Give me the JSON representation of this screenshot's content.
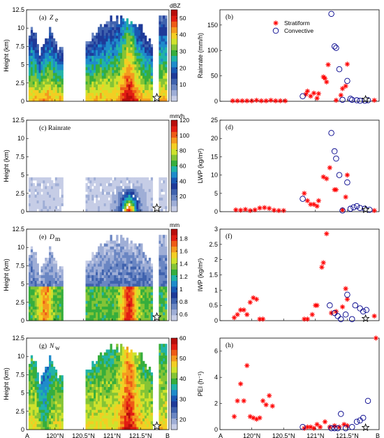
{
  "colors": {
    "stratiform": "#ff0000",
    "convective": "#00008b",
    "colormap": [
      "#c6cde6",
      "#9faed6",
      "#6a86c3",
      "#3f62ae",
      "#1f3a99",
      "#1a58b4",
      "#1f8ccb",
      "#21b3a8",
      "#36ae3d",
      "#84c436",
      "#cfe22d",
      "#f3ce23",
      "#f49a1f",
      "#ee5b17",
      "#e21d13",
      "#b80d0b"
    ]
  },
  "bottom_axis": {
    "start_label": "A",
    "end_label": "B",
    "tick_labels": [
      "120°N",
      "120.5°N",
      "121°N",
      "121.5°N"
    ],
    "tick_fracs": [
      0.2,
      0.4,
      0.6,
      0.8
    ]
  },
  "chart_data": [
    {
      "id": "a",
      "type": "heatmap",
      "panel_label": "(a)",
      "var_main": "Z",
      "var_sub": "e",
      "ylabel": "Height (km)",
      "ylim": [
        0,
        12.5
      ],
      "yticks": [
        0,
        2.5,
        5,
        7.5,
        10,
        12.5
      ],
      "colorbar": {
        "unit": "dBZ",
        "range": [
          0,
          55
        ],
        "ticks": [
          10,
          20,
          30,
          40,
          50
        ]
      },
      "field": "ze"
    },
    {
      "id": "b",
      "type": "scatter",
      "panel_label": "(b)",
      "ylabel": "Rainrate (mm/h)",
      "ylim": [
        0,
        180
      ],
      "yticks": [
        0,
        50,
        100,
        150
      ],
      "legend": {
        "placement": "top-left",
        "entries": [
          "Stratiform",
          "Convective"
        ]
      },
      "series": [
        {
          "name": "Stratiform",
          "marker": "star",
          "points": [
            [
              0.08,
              1
            ],
            [
              0.11,
              1
            ],
            [
              0.14,
              1
            ],
            [
              0.17,
              1
            ],
            [
              0.2,
              1
            ],
            [
              0.23,
              2
            ],
            [
              0.26,
              1
            ],
            [
              0.29,
              1
            ],
            [
              0.32,
              2
            ],
            [
              0.35,
              1
            ],
            [
              0.38,
              1
            ],
            [
              0.41,
              1
            ],
            [
              0.54,
              14
            ],
            [
              0.55,
              20
            ],
            [
              0.57,
              10
            ],
            [
              0.59,
              16
            ],
            [
              0.61,
              6
            ],
            [
              0.62,
              15
            ],
            [
              0.65,
              48
            ],
            [
              0.66,
              45
            ],
            [
              0.67,
              38
            ],
            [
              0.68,
              72
            ],
            [
              0.73,
              2
            ],
            [
              0.76,
              12
            ],
            [
              0.77,
              25
            ],
            [
              0.79,
              30
            ],
            [
              0.8,
              73
            ],
            [
              0.97,
              2
            ]
          ]
        },
        {
          "name": "Convective",
          "points": [
            [
              0.52,
              10
            ],
            [
              0.7,
              172
            ],
            [
              0.72,
              108
            ],
            [
              0.73,
              105
            ],
            [
              0.75,
              63
            ],
            [
              0.77,
              3
            ],
            [
              0.8,
              40
            ],
            [
              0.82,
              5
            ],
            [
              0.83,
              3
            ],
            [
              0.86,
              2
            ],
            [
              0.88,
              1
            ],
            [
              0.91,
              1
            ],
            [
              0.93,
              2
            ]
          ]
        }
      ]
    },
    {
      "id": "c",
      "type": "heatmap",
      "panel_label": "(c) Rainrate",
      "ylabel": "Height (km)",
      "ylim": [
        0,
        12.5
      ],
      "yticks": [
        0,
        2.5,
        5,
        7.5,
        10,
        12.5
      ],
      "colorbar": {
        "unit": "mm/h",
        "range": [
          0,
          120
        ],
        "ticks": [
          20,
          40,
          60,
          80,
          100,
          120
        ]
      },
      "field": "rain"
    },
    {
      "id": "d",
      "type": "scatter",
      "panel_label": "(d)",
      "ylabel": "LWP (kg/m²)",
      "ylim": [
        0,
        25
      ],
      "yticks": [
        0,
        5,
        10,
        15,
        20,
        25
      ],
      "series": [
        {
          "name": "Stratiform",
          "marker": "star",
          "points": [
            [
              0.1,
              0.5
            ],
            [
              0.13,
              0.4
            ],
            [
              0.16,
              0.6
            ],
            [
              0.19,
              0.3
            ],
            [
              0.22,
              0.5
            ],
            [
              0.25,
              1
            ],
            [
              0.28,
              1.1
            ],
            [
              0.31,
              0.9
            ],
            [
              0.34,
              0.4
            ],
            [
              0.37,
              0.3
            ],
            [
              0.4,
              0.3
            ],
            [
              0.53,
              5
            ],
            [
              0.55,
              3
            ],
            [
              0.57,
              2
            ],
            [
              0.59,
              2
            ],
            [
              0.61,
              1.5
            ],
            [
              0.62,
              3
            ],
            [
              0.65,
              9.5
            ],
            [
              0.67,
              9
            ],
            [
              0.69,
              12
            ],
            [
              0.72,
              6
            ],
            [
              0.73,
              6
            ],
            [
              0.77,
              0.5
            ],
            [
              0.79,
              4
            ],
            [
              0.8,
              10
            ],
            [
              0.97,
              0.3
            ]
          ]
        },
        {
          "name": "Convective",
          "points": [
            [
              0.52,
              3.5
            ],
            [
              0.7,
              21.5
            ],
            [
              0.72,
              16.5
            ],
            [
              0.73,
              14.5
            ],
            [
              0.75,
              10
            ],
            [
              0.77,
              0.3
            ],
            [
              0.8,
              8
            ],
            [
              0.82,
              0.8
            ],
            [
              0.84,
              1.2
            ],
            [
              0.86,
              1.5
            ],
            [
              0.88,
              1
            ],
            [
              0.91,
              0.8
            ],
            [
              0.94,
              0.5
            ]
          ]
        }
      ]
    },
    {
      "id": "e",
      "type": "heatmap",
      "panel_label": "(e)",
      "var_main": "D",
      "var_sub": "m",
      "ylabel": "Height (km)",
      "ylim": [
        0,
        12.5
      ],
      "yticks": [
        0,
        2.5,
        5,
        7.5,
        10,
        12.5
      ],
      "colorbar": {
        "unit": "mm",
        "range": [
          0.5,
          1.95
        ],
        "ticks": [
          0.6,
          0.8,
          1,
          1.2,
          1.4,
          1.6,
          1.8
        ]
      },
      "field": "dm"
    },
    {
      "id": "f",
      "type": "scatter",
      "panel_label": "(f)",
      "ylabel": "IWP (kg/m²)",
      "ylim": [
        0,
        3
      ],
      "yticks": [
        0,
        0.5,
        1,
        1.5,
        2,
        2.5,
        3
      ],
      "series": [
        {
          "name": "Stratiform",
          "marker": "star",
          "points": [
            [
              0.09,
              0.1
            ],
            [
              0.11,
              0.2
            ],
            [
              0.13,
              0.35
            ],
            [
              0.15,
              0.35
            ],
            [
              0.17,
              0.2
            ],
            [
              0.19,
              0.6
            ],
            [
              0.21,
              0.75
            ],
            [
              0.23,
              0.7
            ],
            [
              0.25,
              0.05
            ],
            [
              0.27,
              0.05
            ],
            [
              0.53,
              0.05
            ],
            [
              0.55,
              0.05
            ],
            [
              0.58,
              0.2
            ],
            [
              0.6,
              0.5
            ],
            [
              0.61,
              0.5
            ],
            [
              0.64,
              1.75
            ],
            [
              0.65,
              1.9
            ],
            [
              0.67,
              2.85
            ],
            [
              0.7,
              0.25
            ],
            [
              0.73,
              0.3
            ],
            [
              0.77,
              0.45
            ],
            [
              0.79,
              1.05
            ],
            [
              0.8,
              0.7
            ],
            [
              0.97,
              0.15
            ]
          ]
        },
        {
          "name": "Convective",
          "points": [
            [
              0.69,
              0.5
            ],
            [
              0.72,
              0.25
            ],
            [
              0.74,
              0.15
            ],
            [
              0.76,
              0.05
            ],
            [
              0.79,
              0.2
            ],
            [
              0.8,
              0.85
            ],
            [
              0.83,
              0.05
            ],
            [
              0.85,
              0.5
            ],
            [
              0.88,
              0.4
            ],
            [
              0.9,
              0.3
            ],
            [
              0.92,
              0.35
            ]
          ]
        }
      ]
    },
    {
      "id": "g",
      "type": "heatmap",
      "panel_label": "(g)",
      "var_main": "N",
      "var_sub": "w",
      "ylabel": "Height (km)",
      "ylim": [
        0,
        12.5
      ],
      "yticks": [
        0,
        2.5,
        5,
        7.5,
        10,
        12.5
      ],
      "colorbar": {
        "unit": "",
        "range": [
          15,
          60
        ],
        "ticks": [
          20,
          30,
          40,
          50,
          60
        ]
      },
      "field": "nw"
    },
    {
      "id": "h",
      "type": "scatter",
      "panel_label": "(h)",
      "ylabel": "PEI (h⁻¹)",
      "ylim": [
        0,
        7
      ],
      "yticks": [
        0,
        2,
        4,
        6
      ],
      "series": [
        {
          "name": "Stratiform",
          "marker": "star",
          "points": [
            [
              0.09,
              1
            ],
            [
              0.11,
              2.2
            ],
            [
              0.13,
              3.5
            ],
            [
              0.15,
              2.2
            ],
            [
              0.17,
              4.9
            ],
            [
              0.19,
              1
            ],
            [
              0.21,
              0.9
            ],
            [
              0.23,
              0.8
            ],
            [
              0.25,
              0.9
            ],
            [
              0.27,
              2.2
            ],
            [
              0.29,
              1.9
            ],
            [
              0.31,
              2.6
            ],
            [
              0.33,
              1.8
            ],
            [
              0.53,
              0.1
            ],
            [
              0.55,
              0.2
            ],
            [
              0.57,
              0.2
            ],
            [
              0.59,
              0.1
            ],
            [
              0.61,
              0.4
            ],
            [
              0.63,
              0.2
            ],
            [
              0.66,
              0.6
            ],
            [
              0.69,
              0.2
            ],
            [
              0.72,
              0.3
            ],
            [
              0.75,
              0.2
            ],
            [
              0.78,
              0.4
            ],
            [
              0.8,
              0.3
            ],
            [
              0.98,
              7
            ]
          ]
        },
        {
          "name": "Convective",
          "points": [
            [
              0.52,
              0.2
            ],
            [
              0.7,
              0.1
            ],
            [
              0.72,
              0.1
            ],
            [
              0.74,
              0.1
            ],
            [
              0.76,
              1.2
            ],
            [
              0.79,
              0.1
            ],
            [
              0.83,
              0.2
            ],
            [
              0.86,
              0.6
            ],
            [
              0.88,
              0.7
            ],
            [
              0.9,
              0.9
            ],
            [
              0.93,
              2.2
            ]
          ]
        }
      ]
    }
  ]
}
